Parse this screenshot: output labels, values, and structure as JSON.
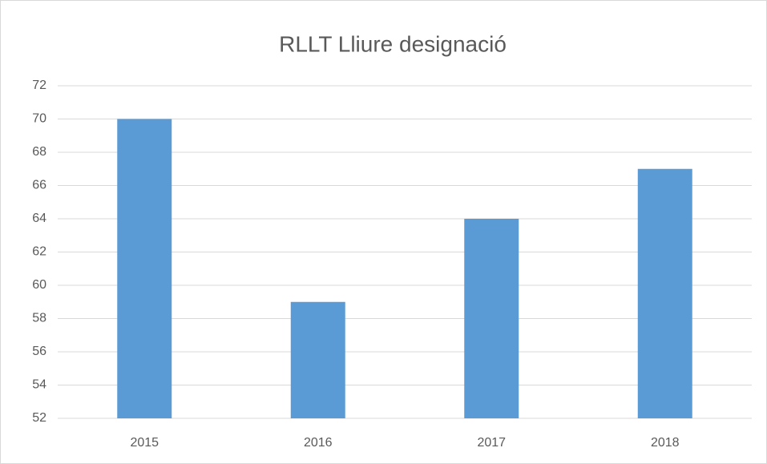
{
  "chart_data": {
    "type": "bar",
    "title": "RLLT Lliure designació",
    "categories": [
      "2015",
      "2016",
      "2017",
      "2018"
    ],
    "values": [
      70,
      59,
      64,
      67
    ],
    "color": "#5b9bd5",
    "ylim": [
      52,
      72
    ],
    "yticks": [
      52,
      54,
      56,
      58,
      60,
      62,
      64,
      66,
      68,
      70,
      72
    ],
    "grid": true
  }
}
